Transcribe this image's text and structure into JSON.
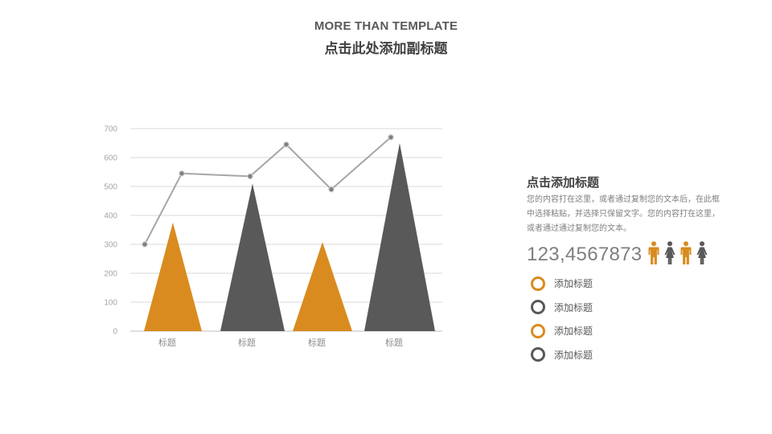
{
  "header": {
    "title_en": "MORE THAN TEMPLATE",
    "title_cn": "点击此处添加副标题"
  },
  "colors": {
    "orange": "#D98B1F",
    "dark": "#595959",
    "line": "#A6A6A6",
    "grid": "#D9D9D9"
  },
  "chart_data": {
    "type": "bar",
    "bar_shape": "triangle",
    "categories": [
      "标题",
      "标题",
      "标题",
      "标题"
    ],
    "series": [
      {
        "values": [
          375,
          510,
          308,
          650
        ],
        "colors": [
          "#D98B1F",
          "#595959",
          "#D98B1F",
          "#595959"
        ]
      }
    ],
    "line_series": {
      "type": "line",
      "values": [
        300,
        545,
        535,
        645,
        490,
        670
      ]
    },
    "yticks": [
      0,
      100,
      200,
      300,
      400,
      500,
      600,
      700
    ],
    "ylim": [
      0,
      700
    ],
    "grid": true
  },
  "sidebar": {
    "title": "点击添加标题",
    "body": "您的内容打在这里，或者通过复制您的文本后，在此框中选择粘贴，并选择只保留文字。您的内容打在这里，或者通过通过复制您的文本。",
    "number": "123,4567873",
    "people": [
      {
        "icon": "male-icon",
        "color": "#D98B1F"
      },
      {
        "icon": "female-icon",
        "color": "#595959"
      },
      {
        "icon": "male-icon",
        "color": "#D98B1F"
      },
      {
        "icon": "female-icon",
        "color": "#595959"
      }
    ],
    "legend": [
      {
        "label": "添加标题",
        "color": "orange"
      },
      {
        "label": "添加标题",
        "color": "dark"
      },
      {
        "label": "添加标题",
        "color": "orange"
      },
      {
        "label": "添加标题",
        "color": "dark"
      }
    ]
  }
}
